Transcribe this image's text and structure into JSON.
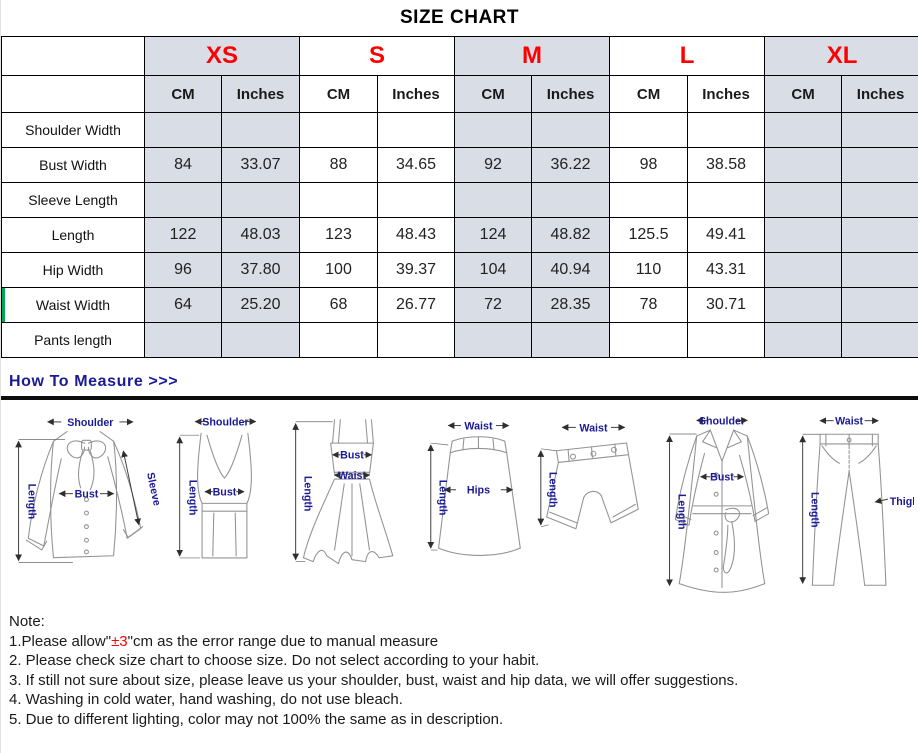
{
  "title": "SIZE CHART",
  "colors": {
    "accent_red": "#fe0000",
    "navy_label": "#1a1a96",
    "cell_gray": "#d8dde6",
    "green_row_accent": "#00a651"
  },
  "table": {
    "sizes": [
      {
        "label": "XS",
        "shaded": true
      },
      {
        "label": "S",
        "shaded": false
      },
      {
        "label": "M",
        "shaded": true
      },
      {
        "label": "L",
        "shaded": false
      },
      {
        "label": "XL",
        "shaded": true
      }
    ],
    "unit_headers": [
      "CM",
      "Inches"
    ],
    "rows": [
      {
        "label": "Shoulder Width",
        "values": [
          "",
          "",
          "",
          "",
          "",
          "",
          "",
          "",
          "",
          ""
        ]
      },
      {
        "label": "Bust Width",
        "values": [
          "84",
          "33.07",
          "88",
          "34.65",
          "92",
          "36.22",
          "98",
          "38.58",
          "",
          ""
        ]
      },
      {
        "label": "Sleeve Length",
        "values": [
          "",
          "",
          "",
          "",
          "",
          "",
          "",
          "",
          "",
          ""
        ]
      },
      {
        "label": "Length",
        "values": [
          "122",
          "48.03",
          "123",
          "48.43",
          "124",
          "48.82",
          "125.5",
          "49.41",
          "",
          ""
        ]
      },
      {
        "label": "Hip Width",
        "values": [
          "96",
          "37.80",
          "100",
          "39.37",
          "104",
          "40.94",
          "110",
          "43.31",
          "",
          ""
        ]
      },
      {
        "label": "Waist Width",
        "values": [
          "64",
          "25.20",
          "68",
          "26.77",
          "72",
          "28.35",
          "78",
          "30.71",
          "",
          ""
        ],
        "left_accent": true
      },
      {
        "label": "Pants length",
        "values": [
          "",
          "",
          "",
          "",
          "",
          "",
          "",
          "",
          "",
          ""
        ]
      }
    ]
  },
  "measure": {
    "heading": "How To Measure >>>",
    "garments": [
      {
        "name": "blouse",
        "labels": [
          "Shoulder",
          "Bust",
          "Sleeve",
          "Length"
        ]
      },
      {
        "name": "tank-top",
        "labels": [
          "Shoulder",
          "Bust",
          "Length"
        ]
      },
      {
        "name": "dress",
        "labels": [
          "Bust",
          "Waist",
          "Length"
        ]
      },
      {
        "name": "skirt",
        "labels": [
          "Waist",
          "Hips",
          "Length"
        ]
      },
      {
        "name": "shorts",
        "labels": [
          "Waist",
          "Length"
        ]
      },
      {
        "name": "coat",
        "labels": [
          "Shoulder",
          "Bust",
          "Length"
        ]
      },
      {
        "name": "pants",
        "labels": [
          "Waist",
          "Thigh",
          "Length"
        ]
      }
    ]
  },
  "notes": {
    "title": "Note:",
    "line1_prefix": "1.Please allow\"",
    "line1_red": "±3",
    "line1_suffix": "\"cm as the error range due to manual measure",
    "line2": "2. Please check size chart to choose size. Do not select according to your habit.",
    "line3": "3. If still not sure about size, please leave us your shoulder, bust, waist and hip data, we will offer suggestions.",
    "line4": "4. Washing in cold water, hand washing, do not use bleach.",
    "line5": "5. Due to different lighting, color may not 100% the same as in description."
  }
}
